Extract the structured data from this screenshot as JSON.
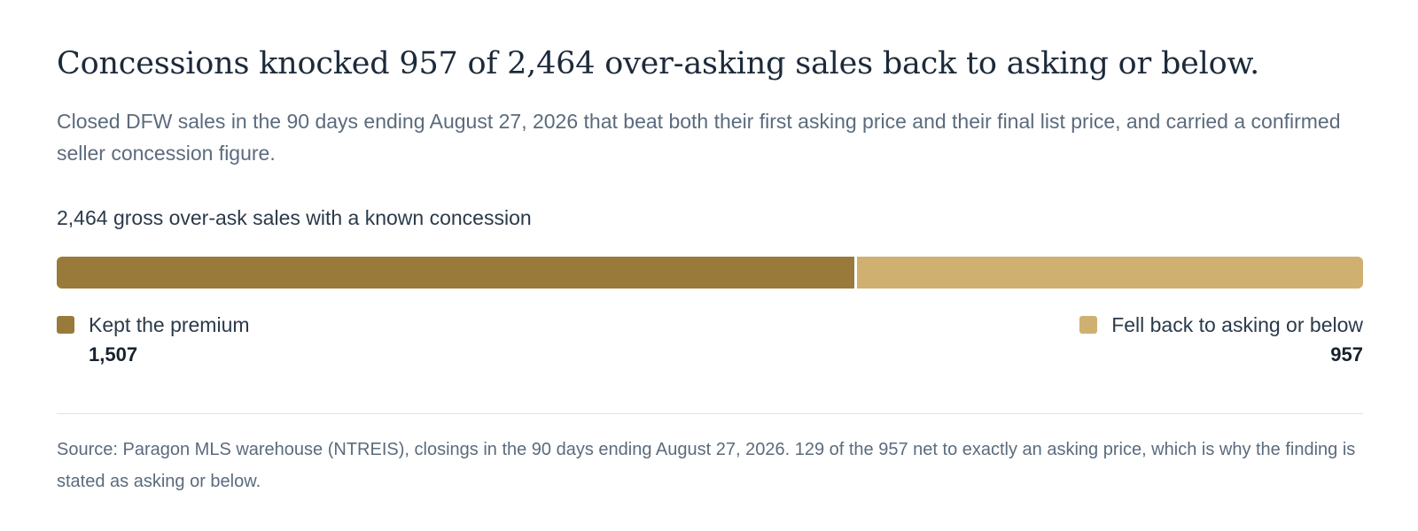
{
  "headline": "Concessions knocked 957 of 2,464 over-asking sales back to asking or below.",
  "subtitle": "Closed DFW sales in the 90 days ending August 27, 2026 that beat both their first asking price and their final list price, and carried a confirmed seller concession figure.",
  "source": "Source: Paragon MLS warehouse (NTREIS), closings in the 90 days ending August 27, 2026. 129 of the 957 net to exactly an asking price, which is why the finding is stated as asking or below.",
  "colors": {
    "kept": "#9a7a3a",
    "fell": "#cfb070"
  },
  "chart_data": {
    "type": "bar",
    "orientation": "horizontal-stacked",
    "title": "2,464 gross over-ask sales with a known concession",
    "total": 2464,
    "series": [
      {
        "name": "Kept the premium",
        "value": 1507,
        "value_label": "1,507"
      },
      {
        "name": "Fell back to asking or below",
        "value": 957,
        "value_label": "957"
      }
    ]
  }
}
